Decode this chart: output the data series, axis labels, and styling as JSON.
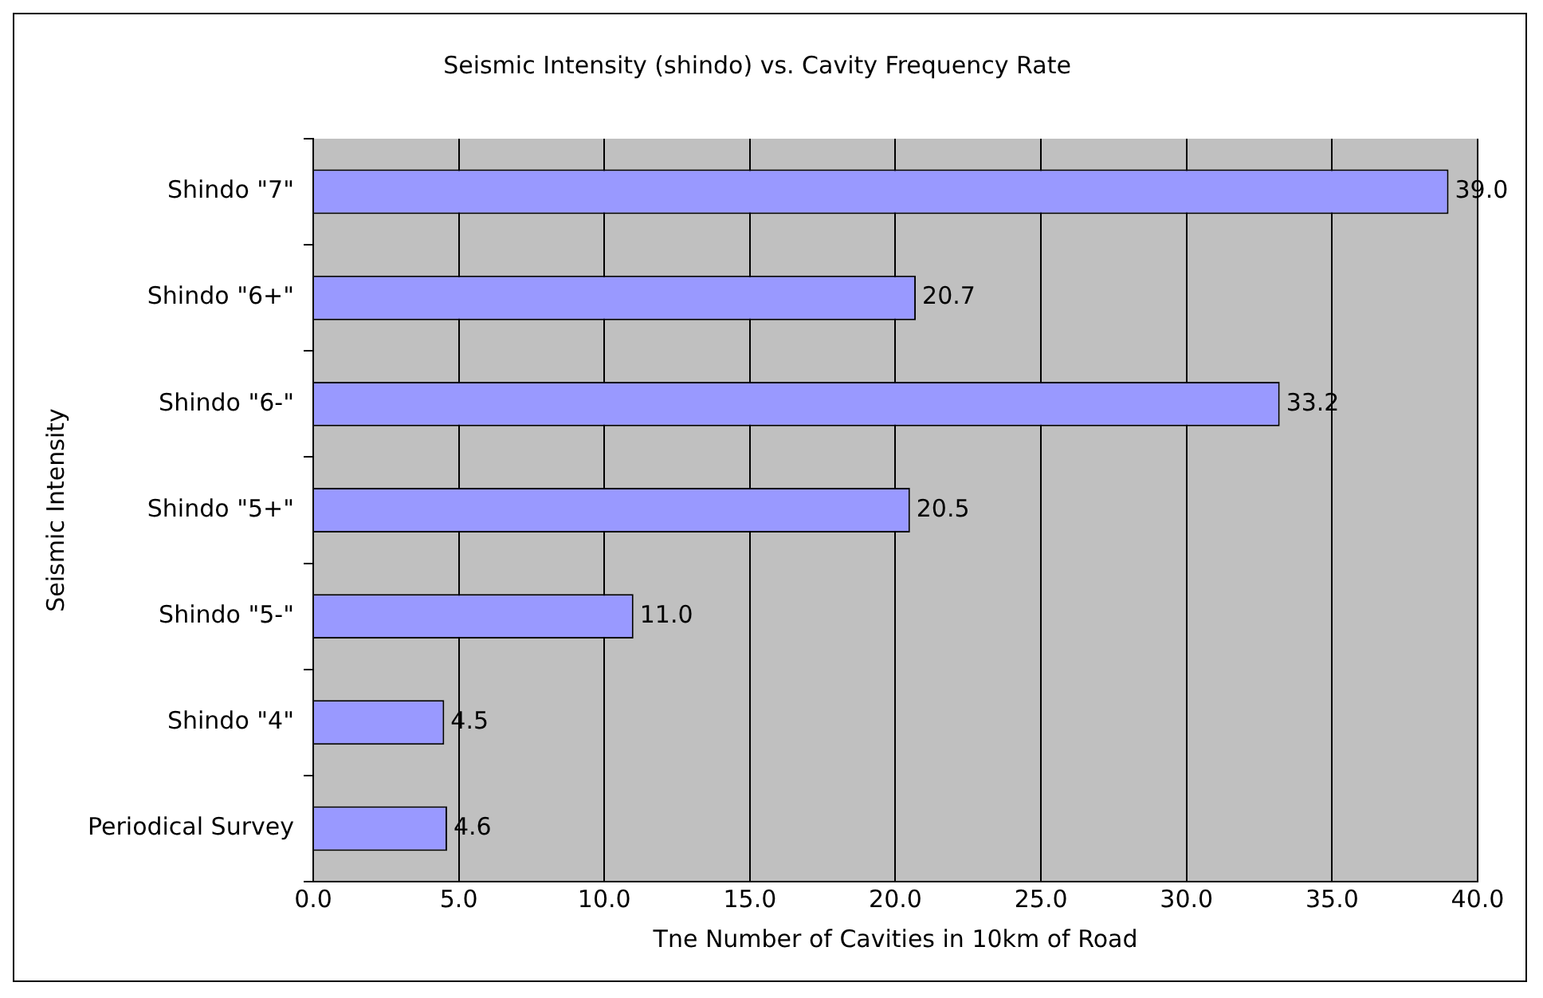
{
  "chart_data": {
    "type": "bar",
    "orientation": "horizontal",
    "title": "Seismic Intensity (shindo) vs. Cavity Frequency Rate",
    "xlabel": "Tne Number of Cavities in 10km of Road",
    "ylabel": "Seismic Intensity",
    "categories": [
      "Shindo \"7\"",
      "Shindo \"6+\"",
      "Shindo \"6-\"",
      "Shindo \"5+\"",
      "Shindo \"5-\"",
      "Shindo \"4\"",
      "Periodical Survey"
    ],
    "values": [
      39.0,
      20.7,
      33.2,
      20.5,
      11.0,
      4.5,
      4.6
    ],
    "color": "#9999ff",
    "xlim": [
      0,
      40
    ],
    "xticks": [
      {
        "value": 0,
        "label": "0.0"
      },
      {
        "value": 5,
        "label": "5.0"
      },
      {
        "value": 10,
        "label": "10.0"
      },
      {
        "value": 15,
        "label": "15.0"
      },
      {
        "value": 20,
        "label": "20.0"
      },
      {
        "value": 25,
        "label": "25.0"
      },
      {
        "value": 30,
        "label": "30.0"
      },
      {
        "value": 35,
        "label": "35.0"
      },
      {
        "value": 40,
        "label": "40.0"
      }
    ],
    "value_labels": [
      "39.0",
      "20.7",
      "33.2",
      "20.5",
      "11.0",
      "4.5",
      "4.6"
    ],
    "grid": "x",
    "legend": false
  }
}
